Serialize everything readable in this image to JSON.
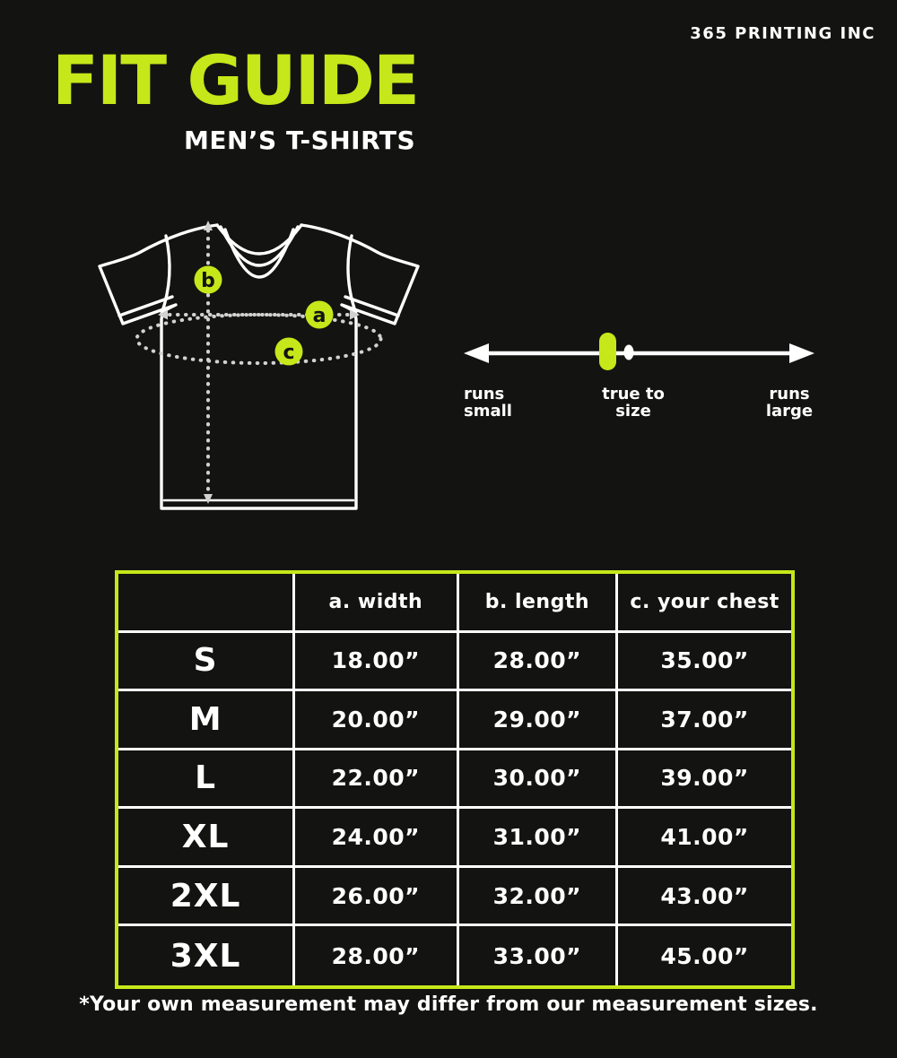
{
  "brand": "365 PRINTING INC",
  "title": "FIT GUIDE",
  "subtitle": "MEN’S T-SHIRTS",
  "colors": {
    "accent": "#c6e719",
    "background": "#131312",
    "text": "#ffffff",
    "dotted_lines": "#d2d2d2"
  },
  "diagram": {
    "markers": [
      {
        "label": "a"
      },
      {
        "label": "b"
      },
      {
        "label": "c"
      }
    ]
  },
  "fit_scale": {
    "left": {
      "line1": "runs",
      "line2": "small"
    },
    "center": {
      "line1": "true to",
      "line2": "size"
    },
    "right": {
      "line1": "runs",
      "line2": "large"
    },
    "position": "true to size"
  },
  "table": {
    "headers": [
      "",
      "a. width",
      "b. length",
      "c. your chest"
    ],
    "rows": [
      [
        "S",
        "18.00”",
        "28.00”",
        "35.00”"
      ],
      [
        "M",
        "20.00”",
        "29.00”",
        "37.00”"
      ],
      [
        "L",
        "22.00”",
        "30.00”",
        "39.00”"
      ],
      [
        "XL",
        "24.00”",
        "31.00”",
        "41.00”"
      ],
      [
        "2XL",
        "26.00”",
        "32.00”",
        "43.00”"
      ],
      [
        "3XL",
        "28.00”",
        "33.00”",
        "45.00”"
      ]
    ]
  },
  "footnote": "*Your own measurement may differ from our measurement sizes."
}
